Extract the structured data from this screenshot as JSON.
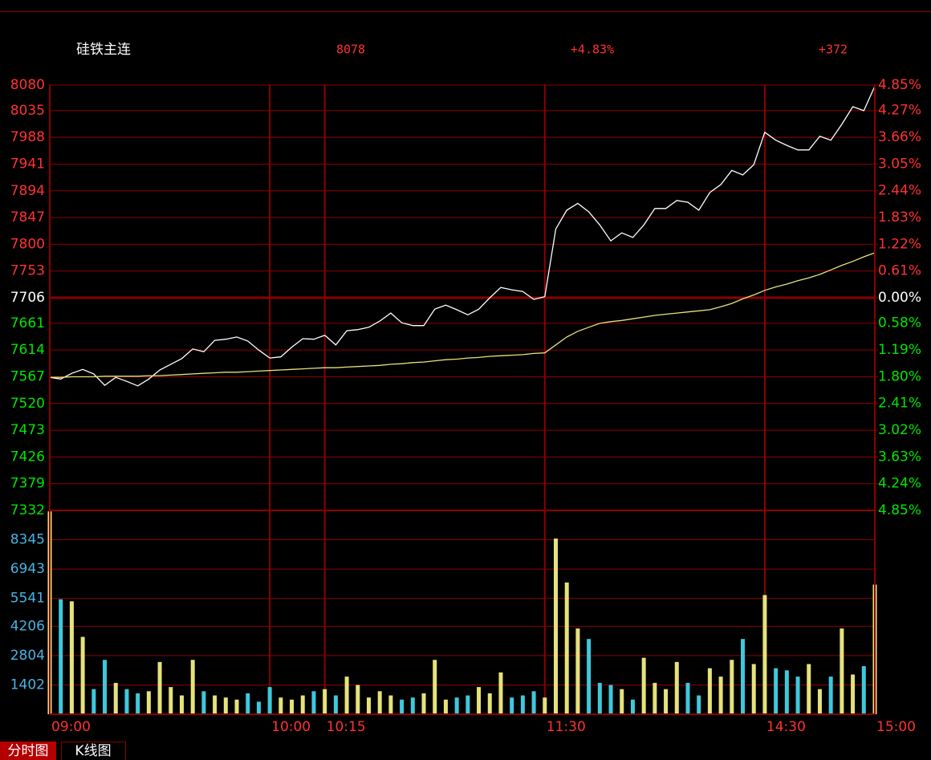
{
  "header": {
    "symbol": "硅铁主连",
    "price": "8078",
    "change_pct": "+4.83%",
    "change": "+372"
  },
  "tabs": [
    "分时图",
    "K线图"
  ],
  "chart_data": [
    {
      "type": "line",
      "x": [
        0,
        3,
        6,
        9,
        12,
        15,
        18,
        21,
        24,
        27,
        30,
        33,
        36,
        39,
        42,
        45,
        48,
        51,
        54,
        57,
        60,
        63,
        66,
        69,
        72,
        75,
        78,
        81,
        84,
        87,
        90,
        93,
        96,
        99,
        102,
        105,
        108,
        111,
        114,
        117,
        120,
        123,
        126,
        129,
        132,
        135,
        138,
        141,
        144,
        147,
        150,
        153,
        156,
        159,
        162,
        165,
        168,
        171,
        174,
        177,
        180,
        183,
        186,
        189,
        192,
        195,
        198,
        201,
        204,
        207,
        210,
        213,
        216,
        219,
        222,
        225
      ],
      "series": [
        {
          "color": "#ffffff",
          "values": [
            7566,
            7563,
            7573,
            7580,
            7572,
            7552,
            7566,
            7559,
            7551,
            7563,
            7579,
            7589,
            7599,
            7616,
            7611,
            7631,
            7633,
            7637,
            7630,
            7614,
            7600,
            7602,
            7619,
            7634,
            7633,
            7640,
            7623,
            7648,
            7650,
            7654,
            7665,
            7679,
            7662,
            7657,
            7657,
            7686,
            7693,
            7685,
            7676,
            7686,
            7706,
            7724,
            7720,
            7717,
            7703,
            7708,
            7827,
            7860,
            7872,
            7857,
            7834,
            7806,
            7820,
            7812,
            7834,
            7863,
            7863,
            7877,
            7874,
            7860,
            7891,
            7905,
            7930,
            7922,
            7940,
            7997,
            7983,
            7974,
            7966,
            7966,
            7990,
            7983,
            8011,
            8042,
            8035,
            8078
          ]
        },
        {
          "color": "#e6e27a",
          "values": [
            7566,
            7566,
            7567,
            7567,
            7567,
            7568,
            7568,
            7568,
            7568,
            7569,
            7569,
            7570,
            7571,
            7572,
            7573,
            7574,
            7575,
            7575,
            7576,
            7577,
            7578,
            7579,
            7580,
            7581,
            7582,
            7583,
            7583,
            7584,
            7585,
            7586,
            7587,
            7589,
            7590,
            7592,
            7593,
            7595,
            7597,
            7598,
            7600,
            7601,
            7603,
            7604,
            7605,
            7606,
            7608,
            7609,
            7623,
            7637,
            7647,
            7654,
            7661,
            7664,
            7666,
            7669,
            7672,
            7675,
            7677,
            7679,
            7681,
            7683,
            7685,
            7690,
            7696,
            7704,
            7711,
            7719,
            7725,
            7730,
            7736,
            7741,
            7747,
            7755,
            7763,
            7770,
            7778,
            7785
          ]
        }
      ],
      "xlim": [
        0,
        225
      ],
      "xticks": [
        {
          "value": 0,
          "label": "09:00"
        },
        {
          "value": 60,
          "label": "10:00"
        },
        {
          "value": 75,
          "label": "10:15"
        },
        {
          "value": 135,
          "label": "11:30"
        },
        {
          "value": 195,
          "label": "14:30"
        },
        {
          "value": 225,
          "label": "15:00"
        }
      ],
      "ylim": [
        7332,
        8080
      ],
      "yticks": [
        8080,
        8035,
        7988,
        7941,
        7894,
        7847,
        7800,
        7753,
        7706,
        7661,
        7614,
        7567,
        7520,
        7473,
        7426,
        7379,
        7332
      ],
      "y2lim": [
        -4.85,
        4.85
      ],
      "y2ticks": [
        {
          "value": 4.85,
          "label": "4.85%"
        },
        {
          "value": 4.27,
          "label": "4.27%"
        },
        {
          "value": 3.66,
          "label": "3.66%"
        },
        {
          "value": 3.05,
          "label": "3.05%"
        },
        {
          "value": 2.44,
          "label": "2.44%"
        },
        {
          "value": 1.83,
          "label": "1.83%"
        },
        {
          "value": 1.22,
          "label": "1.22%"
        },
        {
          "value": 0.61,
          "label": "0.61%"
        },
        {
          "value": 0,
          "label": "0.00%"
        },
        {
          "value": -0.58,
          "label": "0.58%"
        },
        {
          "value": -1.19,
          "label": "1.19%"
        },
        {
          "value": -1.8,
          "label": "1.80%"
        },
        {
          "value": -2.41,
          "label": "2.41%"
        },
        {
          "value": -3.02,
          "label": "3.02%"
        },
        {
          "value": -3.63,
          "label": "3.63%"
        },
        {
          "value": -4.24,
          "label": "4.24%"
        },
        {
          "value": -4.85,
          "label": "4.85%"
        }
      ],
      "grid": true,
      "up_color": "#ff3232",
      "down_color": "#00e600",
      "flat_color": "#ffffff",
      "grid_color": "#8c0000"
    },
    {
      "type": "bar",
      "x": [
        0,
        3,
        6,
        9,
        12,
        15,
        18,
        21,
        24,
        27,
        30,
        33,
        36,
        39,
        42,
        45,
        48,
        51,
        54,
        57,
        60,
        63,
        66,
        69,
        72,
        75,
        78,
        81,
        84,
        87,
        90,
        93,
        96,
        99,
        102,
        105,
        108,
        111,
        114,
        117,
        120,
        123,
        126,
        129,
        132,
        135,
        138,
        141,
        144,
        147,
        150,
        153,
        156,
        159,
        162,
        165,
        168,
        171,
        174,
        177,
        180,
        183,
        186,
        189,
        192,
        195,
        198,
        201,
        204,
        207,
        210,
        213,
        216,
        219,
        222,
        225
      ],
      "values": [
        9700,
        5500,
        5400,
        3700,
        1200,
        2600,
        1500,
        1200,
        1000,
        1100,
        2500,
        1300,
        900,
        2600,
        1100,
        900,
        800,
        700,
        1000,
        600,
        1300,
        800,
        700,
        900,
        1100,
        1200,
        900,
        1800,
        1400,
        800,
        1100,
        900,
        700,
        800,
        1000,
        2600,
        700,
        800,
        900,
        1300,
        1000,
        2000,
        800,
        900,
        1100,
        800,
        8400,
        6300,
        4100,
        3600,
        1500,
        1400,
        1200,
        700,
        2700,
        1500,
        1200,
        2500,
        1500,
        900,
        2200,
        1800,
        2600,
        3600,
        2400,
        5700,
        2200,
        2100,
        1800,
        2400,
        1200,
        1800,
        4100,
        1900,
        2300,
        6200
      ],
      "xlim": [
        0,
        225
      ],
      "ylim": [
        0,
        9747
      ],
      "yticks": [
        1402,
        2804,
        4206,
        5541,
        6943,
        8345
      ],
      "grid": true,
      "up_color": "#e6e27a",
      "down_color": "#3fc8dc",
      "tick_color": "#46b4e6",
      "grid_color": "#8c0000"
    }
  ]
}
